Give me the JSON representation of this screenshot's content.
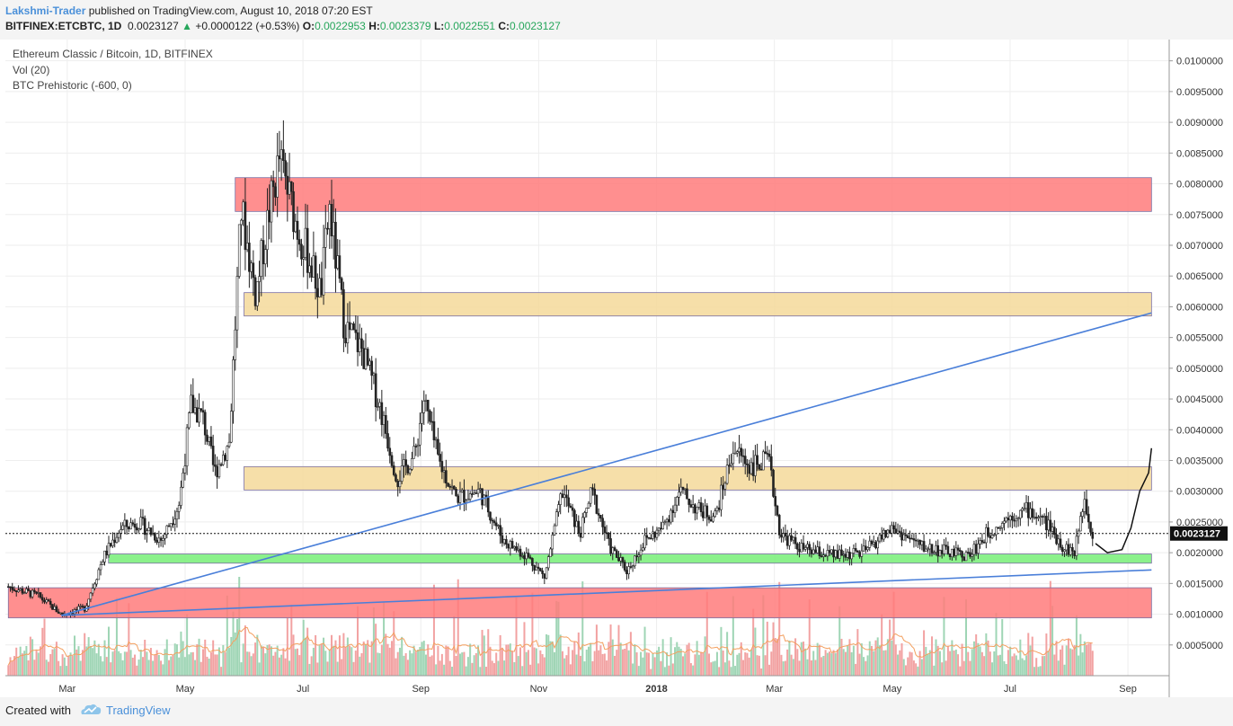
{
  "header": {
    "author": "Lakshmi-Trader",
    "published": "published on TradingView.com, August 10, 2018 07:20 EST",
    "symbol": "BITFINEX:ETCBTC, 1D",
    "last": "0.0023127",
    "change_arrow": "▲",
    "change": "+0.0000122 (+0.53%)",
    "o_label": "O:",
    "o_value": "0.0022953",
    "h_label": "H:",
    "h_value": "0.0023379",
    "l_label": "L:",
    "l_value": "0.0022551",
    "c_label": "C:",
    "c_value": "0.0023127"
  },
  "legend": {
    "title": "Ethereum Classic / Bitcoin, 1D, BITFINEX",
    "vol": "Vol (20)",
    "indicator": "BTC Prehistoric (-600, 0)"
  },
  "price_label": "0.0023127",
  "colors": {
    "up": "#26a65b",
    "red_zone": "#ff7b7b",
    "yellow_zone": "#f5d99a",
    "green_zone": "#77ee77",
    "trendline": "#4a7fd9",
    "candle": "#222222",
    "vol_up": "#9fd5b5",
    "vol_down": "#f2a2a2",
    "vol_ma": "#f3a060"
  },
  "footer": {
    "created_with": "Created with",
    "brand": "TradingView"
  },
  "chart_data": {
    "type": "candlestick",
    "title": "Ethereum Classic / Bitcoin, 1D, BITFINEX",
    "ylim": [
      0.0,
      0.0102
    ],
    "y_ticks": [
      "0.0005000",
      "0.0010000",
      "0.0015000",
      "0.0020000",
      "0.0025000",
      "0.0030000",
      "0.0035000",
      "0.0040000",
      "0.0045000",
      "0.0050000",
      "0.0055000",
      "0.0060000",
      "0.0065000",
      "0.0070000",
      "0.0075000",
      "0.0080000",
      "0.0085000",
      "0.0090000",
      "0.0095000",
      "0.0100000"
    ],
    "x_ticks": [
      {
        "label": "Mar",
        "t": 1.0
      },
      {
        "label": "May",
        "t": 3.0
      },
      {
        "label": "Jul",
        "t": 5.0
      },
      {
        "label": "Sep",
        "t": 7.0
      },
      {
        "label": "Nov",
        "t": 9.0
      },
      {
        "label": "2018",
        "t": 11.0
      },
      {
        "label": "Mar",
        "t": 13.0
      },
      {
        "label": "May",
        "t": 15.0
      },
      {
        "label": "Jul",
        "t": 17.0
      },
      {
        "label": "Sep",
        "t": 19.0
      }
    ],
    "price_path": [
      {
        "t": 0.0,
        "p": 0.00145
      },
      {
        "t": 0.5,
        "p": 0.0013
      },
      {
        "t": 0.9,
        "p": 0.001
      },
      {
        "t": 1.3,
        "p": 0.0011
      },
      {
        "t": 1.6,
        "p": 0.0019
      },
      {
        "t": 1.9,
        "p": 0.0024
      },
      {
        "t": 2.2,
        "p": 0.0025
      },
      {
        "t": 2.6,
        "p": 0.0022
      },
      {
        "t": 2.9,
        "p": 0.0028
      },
      {
        "t": 3.1,
        "p": 0.0044
      },
      {
        "t": 3.3,
        "p": 0.0042
      },
      {
        "t": 3.5,
        "p": 0.0033
      },
      {
        "t": 3.75,
        "p": 0.0038
      },
      {
        "t": 3.95,
        "p": 0.0076
      },
      {
        "t": 4.2,
        "p": 0.0062
      },
      {
        "t": 4.4,
        "p": 0.0074
      },
      {
        "t": 4.6,
        "p": 0.0084
      },
      {
        "t": 4.9,
        "p": 0.0073
      },
      {
        "t": 5.1,
        "p": 0.0068
      },
      {
        "t": 5.3,
        "p": 0.0062
      },
      {
        "t": 5.45,
        "p": 0.0076
      },
      {
        "t": 5.7,
        "p": 0.0057
      },
      {
        "t": 6.0,
        "p": 0.0053
      },
      {
        "t": 6.3,
        "p": 0.0044
      },
      {
        "t": 6.6,
        "p": 0.0032
      },
      {
        "t": 6.9,
        "p": 0.0036
      },
      {
        "t": 7.05,
        "p": 0.0045
      },
      {
        "t": 7.3,
        "p": 0.0035
      },
      {
        "t": 7.6,
        "p": 0.0029
      },
      {
        "t": 8.0,
        "p": 0.003
      },
      {
        "t": 8.4,
        "p": 0.0022
      },
      {
        "t": 8.8,
        "p": 0.00195
      },
      {
        "t": 9.1,
        "p": 0.0016
      },
      {
        "t": 9.4,
        "p": 0.003
      },
      {
        "t": 9.7,
        "p": 0.0023
      },
      {
        "t": 9.9,
        "p": 0.003
      },
      {
        "t": 10.2,
        "p": 0.0021
      },
      {
        "t": 10.5,
        "p": 0.0017
      },
      {
        "t": 10.8,
        "p": 0.0022
      },
      {
        "t": 11.1,
        "p": 0.0024
      },
      {
        "t": 11.4,
        "p": 0.003
      },
      {
        "t": 11.7,
        "p": 0.0027
      },
      {
        "t": 12.0,
        "p": 0.0026
      },
      {
        "t": 12.3,
        "p": 0.0037
      },
      {
        "t": 12.6,
        "p": 0.0034
      },
      {
        "t": 12.9,
        "p": 0.0035
      },
      {
        "t": 13.1,
        "p": 0.0023
      },
      {
        "t": 13.5,
        "p": 0.00205
      },
      {
        "t": 14.0,
        "p": 0.00195
      },
      {
        "t": 14.5,
        "p": 0.002
      },
      {
        "t": 15.0,
        "p": 0.0024
      },
      {
        "t": 15.5,
        "p": 0.0021
      },
      {
        "t": 16.0,
        "p": 0.002
      },
      {
        "t": 16.3,
        "p": 0.00195
      },
      {
        "t": 16.6,
        "p": 0.0023
      },
      {
        "t": 17.0,
        "p": 0.0026
      },
      {
        "t": 17.3,
        "p": 0.0027
      },
      {
        "t": 17.6,
        "p": 0.0025
      },
      {
        "t": 17.9,
        "p": 0.0021
      },
      {
        "t": 18.1,
        "p": 0.002
      },
      {
        "t": 18.25,
        "p": 0.0029
      },
      {
        "t": 18.4,
        "p": 0.00231
      }
    ],
    "zones": [
      {
        "kind": "red",
        "t0": 3.85,
        "t1": 19.4,
        "low": 0.00755,
        "high": 0.0081
      },
      {
        "kind": "yellow",
        "t0": 4.0,
        "t1": 19.4,
        "low": 0.00585,
        "high": 0.00623
      },
      {
        "kind": "yellow",
        "t0": 4.0,
        "t1": 19.4,
        "low": 0.00302,
        "high": 0.0034
      },
      {
        "kind": "green",
        "t0": 1.7,
        "t1": 19.4,
        "low": 0.00183,
        "high": 0.00198
      },
      {
        "kind": "red",
        "t0": 0.0,
        "t1": 19.4,
        "low": 0.00094,
        "high": 0.00143
      }
    ],
    "trendlines": [
      {
        "t0": 0.9,
        "p0": 0.00098,
        "t1": 19.4,
        "p1": 0.0059
      },
      {
        "t0": 0.9,
        "p0": 0.00098,
        "t1": 19.4,
        "p1": 0.00172
      }
    ],
    "projection": [
      {
        "t": 18.45,
        "p": 0.00215
      },
      {
        "t": 18.65,
        "p": 0.002
      },
      {
        "t": 18.9,
        "p": 0.00205
      },
      {
        "t": 19.05,
        "p": 0.0024
      },
      {
        "t": 19.2,
        "p": 0.003
      },
      {
        "t": 19.35,
        "p": 0.0033
      },
      {
        "t": 19.4,
        "p": 0.0037
      }
    ],
    "last_price": 0.0023127
  }
}
